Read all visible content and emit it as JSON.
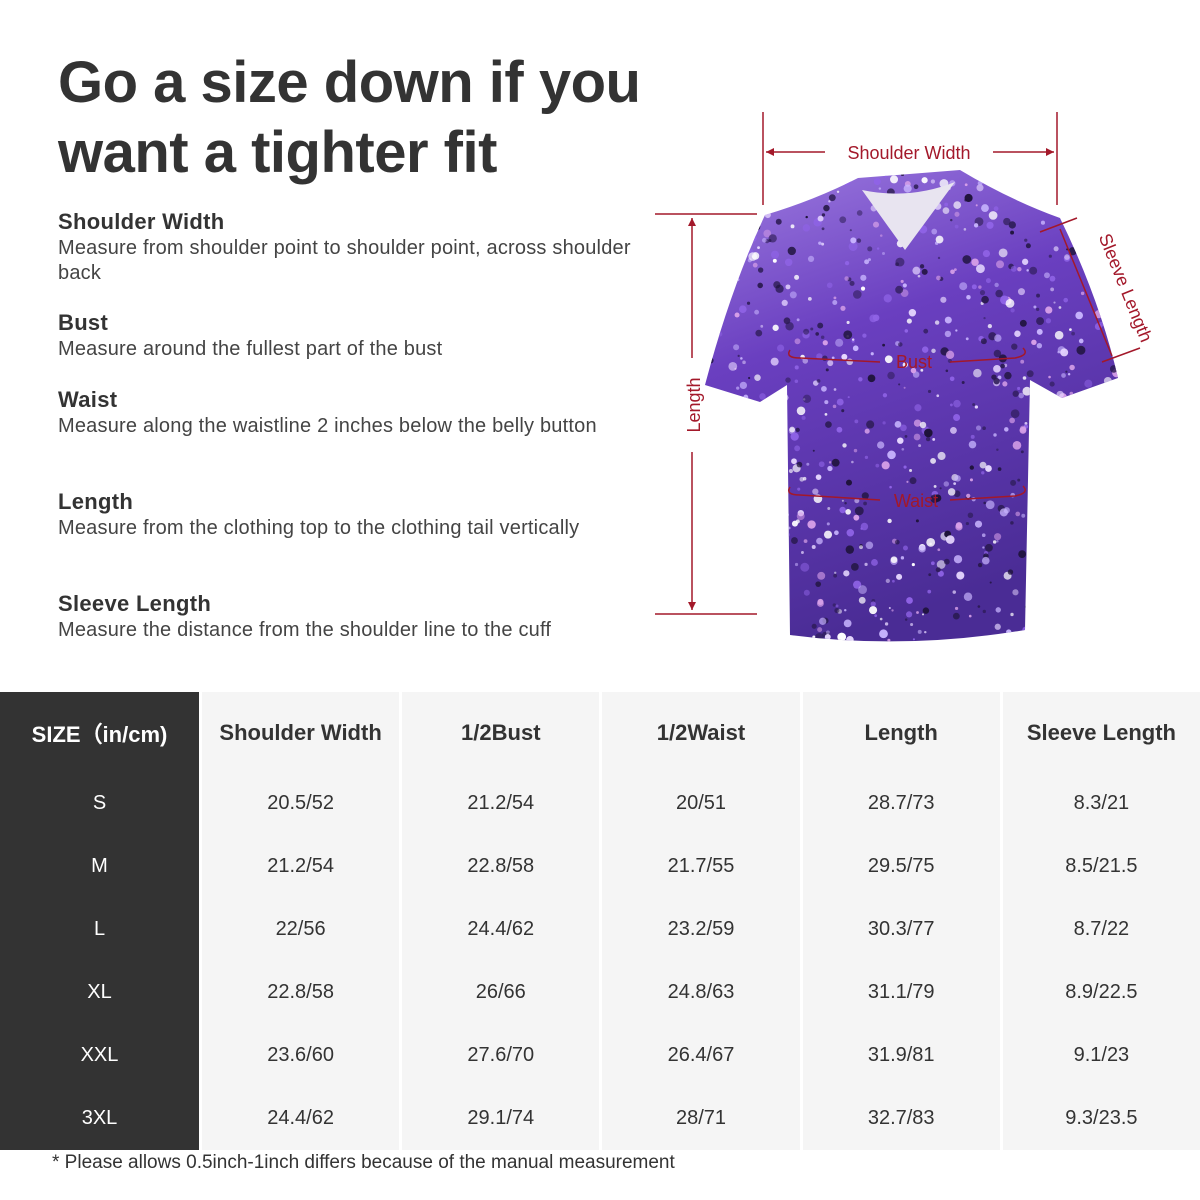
{
  "title": "Go a size down if you want a tighter fit",
  "definitions": [
    {
      "term": "Shoulder Width",
      "desc": "Measure from shoulder point to shoulder point, across shoulder back"
    },
    {
      "term": "Bust",
      "desc": "Measure around the fullest part of the bust"
    },
    {
      "term": "Waist",
      "desc": "Measure along the waistline 2 inches below the belly button"
    },
    {
      "term": "Length",
      "desc": "Measure from the clothing top to the clothing tail vertically"
    },
    {
      "term": "Sleeve Length",
      "desc": "Measure the distance from the shoulder line to the cuff"
    }
  ],
  "diagram": {
    "labels": {
      "shoulder": "Shoulder Width",
      "sleeve": "Sleeve Length",
      "length": "Length",
      "bust": "Bust",
      "waist": "Waist"
    },
    "annotation_color": "#a3182a",
    "shirt_color": "#6a3fc0"
  },
  "table": {
    "headers": [
      "SIZE（in/cm)",
      "Shoulder Width",
      "1/2Bust",
      "1/2Waist",
      "Length",
      "Sleeve Length"
    ],
    "rows": [
      [
        "S",
        "20.5/52",
        "21.2/54",
        "20/51",
        "28.7/73",
        "8.3/21"
      ],
      [
        "M",
        "21.2/54",
        "22.8/58",
        "21.7/55",
        "29.5/75",
        "8.5/21.5"
      ],
      [
        "L",
        "22/56",
        "24.4/62",
        "23.2/59",
        "30.3/77",
        "8.7/22"
      ],
      [
        "XL",
        "22.8/58",
        "26/66",
        "24.8/63",
        "31.1/79",
        "8.9/22.5"
      ],
      [
        "XXL",
        "23.6/60",
        "27.6/70",
        "26.4/67",
        "31.9/81",
        "9.1/23"
      ],
      [
        "3XL",
        "24.4/62",
        "29.1/74",
        "28/71",
        "32.7/83",
        "9.3/23.5"
      ]
    ]
  },
  "footnote": "* Please allows 0.5inch-1inch differs because of the  manual measurement"
}
